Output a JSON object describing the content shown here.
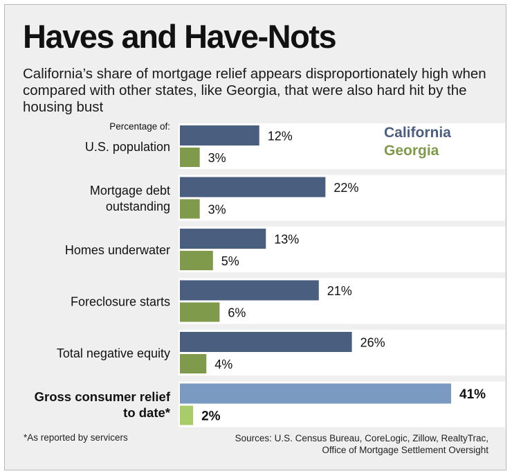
{
  "header": {
    "title": "Haves and Have-Nots",
    "subtitle": "California’s share of mortgage relief appears disproportionately high when compared with other states, like Georgia, that were also hard hit by the housing bust"
  },
  "chart_data": {
    "type": "bar",
    "orientation": "horizontal",
    "category_header": "Percentage of:",
    "categories": [
      [
        "U.S. population"
      ],
      [
        "Mortgage debt",
        "outstanding"
      ],
      [
        "Homes underwater"
      ],
      [
        "Foreclosure starts"
      ],
      [
        "Total negative equity"
      ],
      [
        "Gross consumer relief",
        "to date*"
      ]
    ],
    "emphasized_category_index": 5,
    "series": [
      {
        "name": "California",
        "values": [
          12,
          22,
          13,
          21,
          26,
          41
        ],
        "labels": [
          "12%",
          "22%",
          "13%",
          "21%",
          "26%",
          "41%"
        ]
      },
      {
        "name": "Georgia",
        "values": [
          3,
          3,
          5,
          6,
          4,
          2
        ],
        "labels": [
          "3%",
          "3%",
          "5%",
          "6%",
          "4%",
          "2%"
        ]
      }
    ],
    "legend_placement": "top-right",
    "grid": false,
    "xlim": [
      0,
      41
    ]
  },
  "colors": {
    "california": "#4a5f80",
    "georgia": "#7f9a4a",
    "california_emphasis": "#7a9ac2",
    "georgia_emphasis": "#a9cc6b",
    "california_text": "#4a5f80",
    "georgia_text": "#7f9a4a",
    "panel_band": "#ffffff",
    "background": "#efefef"
  },
  "footer": {
    "footnote": "*As reported by servicers",
    "sources_line1": "Sources: U.S. Census Bureau, CoreLogic, Zillow, RealtyTrac,",
    "sources_line2": "Office of Mortgage Settlement Oversight"
  }
}
